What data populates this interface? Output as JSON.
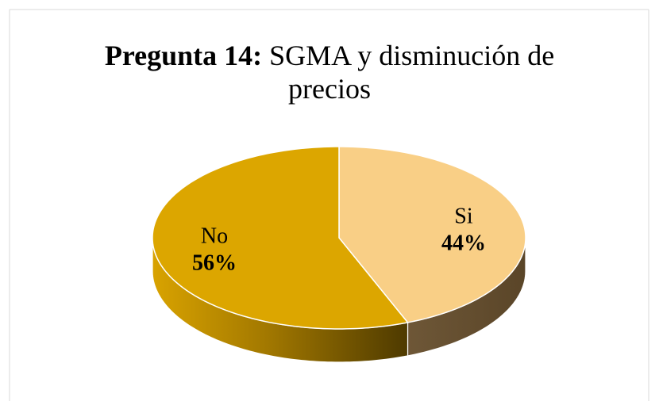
{
  "chart_data": {
    "type": "pie",
    "title_prefix": "Pregunta 14:",
    "title": "SGMA y disminución de precios",
    "categories": [
      "Si",
      "No"
    ],
    "values": [
      44,
      56
    ],
    "value_labels": [
      "44%",
      "56%"
    ],
    "colors": [
      "#f9cf86",
      "#dca600"
    ]
  }
}
